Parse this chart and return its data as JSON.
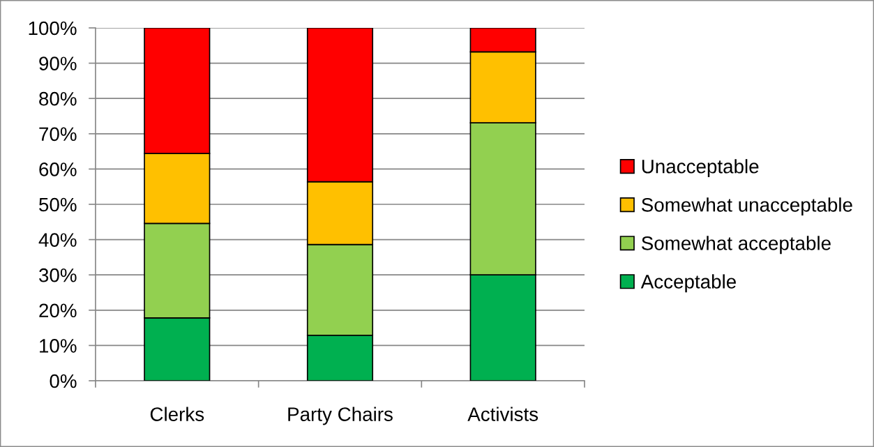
{
  "chart_data": {
    "type": "bar",
    "stacked": true,
    "categories": [
      "Clerks",
      "Party Chairs",
      "Activists"
    ],
    "series": [
      {
        "name": "Acceptable",
        "color": "#00b050",
        "values": [
          17.8,
          12.9,
          30.0
        ]
      },
      {
        "name": "Somewhat acceptable",
        "color": "#92d050",
        "values": [
          26.8,
          25.7,
          43.1
        ]
      },
      {
        "name": "Somewhat unacceptable",
        "color": "#ffc000",
        "values": [
          19.8,
          17.8,
          20.1
        ]
      },
      {
        "name": "Unacceptable",
        "color": "#ff0000",
        "values": [
          35.6,
          43.6,
          6.8
        ]
      }
    ],
    "ylim": [
      0,
      100
    ],
    "yticks": [
      {
        "value": 0,
        "label": "0%"
      },
      {
        "value": 10,
        "label": "10%"
      },
      {
        "value": 20,
        "label": "20%"
      },
      {
        "value": 30,
        "label": "30%"
      },
      {
        "value": 40,
        "label": "40%"
      },
      {
        "value": 50,
        "label": "50%"
      },
      {
        "value": 60,
        "label": "60%"
      },
      {
        "value": 70,
        "label": "70%"
      },
      {
        "value": 80,
        "label": "80%"
      },
      {
        "value": 90,
        "label": "90%"
      },
      {
        "value": 100,
        "label": "100%"
      }
    ],
    "grid": "y",
    "legend": "right"
  }
}
